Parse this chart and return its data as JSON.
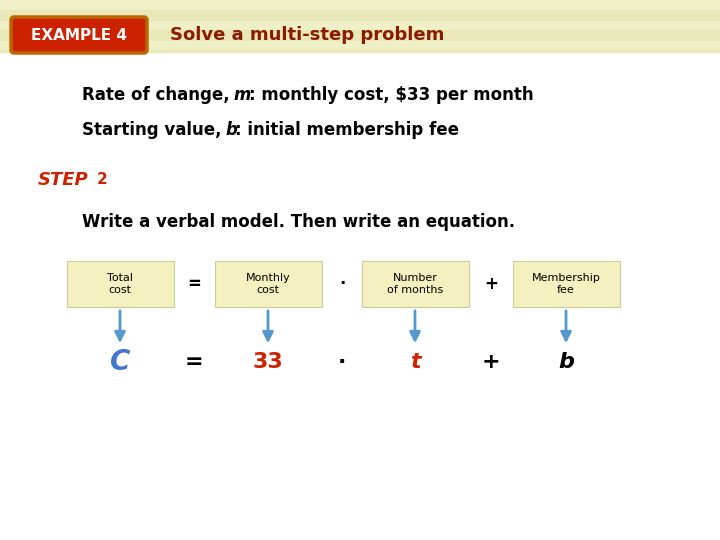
{
  "bg_color": "#f0f0c8",
  "stripe_color": "#e8e8b8",
  "example_badge_bg": "#cc2200",
  "example_badge_border": "#bb6600",
  "example_badge_text": "EXAMPLE 4",
  "example_badge_text_color": "#ffffff",
  "title_text": "Solve a multi-step problem",
  "title_color": "#8b1a00",
  "step_text": "STEP",
  "step_num": "2",
  "step_color": "#cc2200",
  "verbal_text": "Write a verbal model. Then write an equation.",
  "box_color": "#f5f0c0",
  "box_border": "#cccc99",
  "arrow_color": "#5599cc",
  "content_bg": "#ffffff",
  "eq_C_color": "#4477cc",
  "eq_num_color": "#cc2200",
  "eq_var_color": "#cc2200",
  "line1_normal1": "Rate of change, ",
  "line1_italic": "m",
  "line1_normal2": ": monthly cost, $33 per month",
  "line2_normal1": "Starting value, ",
  "line2_italic": "b",
  "line2_normal2": ": initial membership fee"
}
